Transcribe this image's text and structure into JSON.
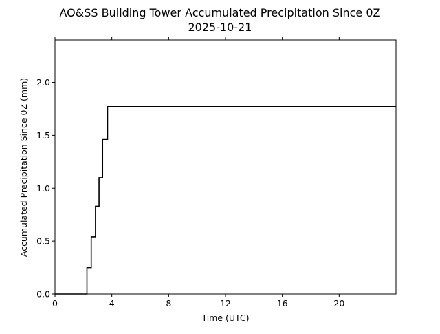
{
  "chart_data": {
    "type": "line",
    "title": "AO&SS Building Tower Accumulated Precipitation Since 0Z",
    "subtitle": "2025-10-21",
    "xlabel": "Time (UTC)",
    "ylabel": "Accumulated Precipitation Since 0Z (mm)",
    "xlim": [
      0,
      24
    ],
    "ylim": [
      0,
      2.4
    ],
    "grid": false,
    "x_ticks": [
      0,
      4,
      8,
      12,
      16,
      20
    ],
    "x_tick_labels": [
      "0",
      "4",
      "8",
      "12",
      "16",
      "20"
    ],
    "y_ticks": [
      0,
      0.5,
      1,
      1.5,
      2
    ],
    "y_tick_labels": [
      "0.0",
      "0.5",
      "1.0",
      "1.5",
      "2.0"
    ],
    "series": [
      {
        "color": "#000000",
        "step": "post",
        "x": [
          0,
          2.25,
          2.55,
          2.85,
          3.1,
          3.35,
          3.7,
          24
        ],
        "y": [
          0,
          0.25,
          0.54,
          0.83,
          1.1,
          1.46,
          1.77,
          1.77
        ]
      }
    ]
  }
}
